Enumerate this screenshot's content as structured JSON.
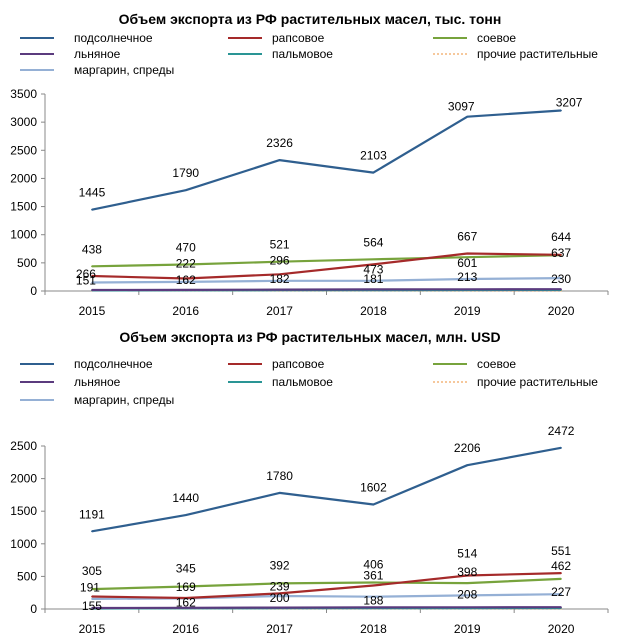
{
  "chart_data": [
    {
      "type": "line",
      "title": "Объем экспорта из РФ растительных масел, тыс. тонн",
      "x": [
        "2015",
        "2016",
        "2017",
        "2018",
        "2019",
        "2020"
      ],
      "ylim": [
        0,
        3500
      ],
      "yticks": [
        0,
        500,
        1000,
        1500,
        2000,
        2500,
        3000,
        3500
      ],
      "ytick_labels": [
        "0",
        "500",
        "1000",
        "1500",
        "2000",
        "2500",
        "3000",
        "3500"
      ],
      "grid": false,
      "legend_position": "top",
      "series": [
        {
          "name": "подсолнечное",
          "color": "#2f5f8f",
          "values": [
            1445,
            1790,
            2326,
            2103,
            3097,
            3207
          ],
          "labels": [
            "1445",
            "1790",
            "2326",
            "2103",
            "3097",
            "3207"
          ]
        },
        {
          "name": "рапсовое",
          "color": "#a52a2a",
          "values": [
            266,
            222,
            296,
            473,
            667,
            644
          ],
          "labels": [
            "266",
            "222",
            "296",
            "473",
            "667",
            "644"
          ]
        },
        {
          "name": "соевое",
          "color": "#77a33c",
          "values": [
            438,
            470,
            521,
            564,
            601,
            637
          ],
          "labels": [
            "438",
            "470",
            "521",
            "564",
            "601",
            "637"
          ]
        },
        {
          "name": "льняное",
          "color": "#5b3b7e",
          "values": [
            18,
            20,
            25,
            28,
            30,
            32
          ],
          "labels": []
        },
        {
          "name": "пальмовое",
          "color": "#2a9595",
          "values": [
            10,
            12,
            15,
            15,
            18,
            20
          ],
          "labels": []
        },
        {
          "name": "прочие растительные",
          "color": "#f0a860",
          "dashed": true,
          "values": [
            2,
            3,
            3,
            4,
            4,
            5
          ],
          "labels": []
        },
        {
          "name": "маргарин, спреды",
          "color": "#95b0d5",
          "values": [
            151,
            162,
            182,
            181,
            213,
            230
          ],
          "labels": [
            "151",
            "162",
            "182",
            "181",
            "213",
            "230"
          ]
        }
      ]
    },
    {
      "type": "line",
      "title": "Объем экспорта из РФ растительных масел, млн. USD",
      "x": [
        "2015",
        "2016",
        "2017",
        "2018",
        "2019",
        "2020"
      ],
      "ylim": [
        0,
        2500
      ],
      "yticks": [
        0,
        500,
        1000,
        1500,
        2000,
        2500
      ],
      "ytick_labels": [
        "0",
        "500",
        "1000",
        "1500",
        "2000",
        "2500"
      ],
      "grid": false,
      "legend_position": "top",
      "series": [
        {
          "name": "подсолнечное",
          "color": "#2f5f8f",
          "values": [
            1191,
            1440,
            1780,
            1602,
            2206,
            2472
          ],
          "labels": [
            "1191",
            "1440",
            "1780",
            "1602",
            "2206",
            "2472"
          ]
        },
        {
          "name": "рапсовое",
          "color": "#a52a2a",
          "values": [
            191,
            169,
            239,
            361,
            514,
            551
          ],
          "labels": [
            "191",
            "169",
            "239",
            "361",
            "514",
            "551"
          ]
        },
        {
          "name": "соевое",
          "color": "#77a33c",
          "values": [
            305,
            345,
            392,
            406,
            398,
            462
          ],
          "labels": [
            "305",
            "345",
            "392",
            "406",
            "398",
            "462"
          ]
        },
        {
          "name": "льняное",
          "color": "#5b3b7e",
          "values": [
            15,
            18,
            22,
            24,
            26,
            28
          ],
          "labels": []
        },
        {
          "name": "пальмовое",
          "color": "#2a9595",
          "values": [
            8,
            10,
            12,
            12,
            14,
            16
          ],
          "labels": []
        },
        {
          "name": "прочие растительные",
          "color": "#f0a860",
          "dashed": true,
          "values": [
            2,
            2,
            3,
            3,
            3,
            4
          ],
          "labels": []
        },
        {
          "name": "маргарин, спреды",
          "color": "#95b0d5",
          "values": [
            155,
            162,
            200,
            188,
            208,
            227
          ],
          "labels": [
            "155",
            "162",
            "200",
            "188",
            "208",
            "227"
          ]
        }
      ]
    }
  ]
}
